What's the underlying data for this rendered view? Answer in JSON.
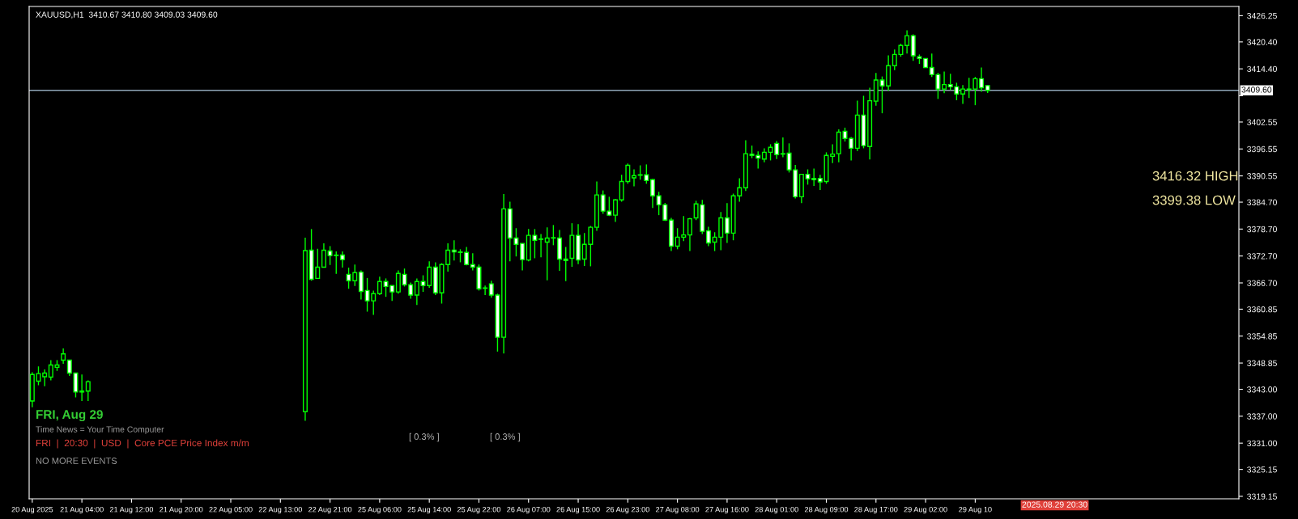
{
  "chart_data": {
    "type": "candlestick",
    "title": "XAUUSD,H1  3410.67 3410.80 3409.03 3409.60",
    "color": "#00ff00",
    "categories": [
      "20 Aug 2025",
      null,
      null,
      null,
      null,
      null,
      null,
      null,
      "21 Aug 04:00",
      null,
      null,
      null,
      null,
      null,
      null,
      null,
      "21 Aug 12:00",
      null,
      null,
      null,
      null,
      null,
      null,
      null,
      "21 Aug 20:00",
      null,
      null,
      null,
      null,
      null,
      null,
      null,
      "22 Aug 05:00",
      null,
      null,
      null,
      null,
      null,
      null,
      null,
      "22 Aug 13:00",
      null,
      null,
      null,
      null,
      null,
      null,
      null,
      "22 Aug 21:00",
      null,
      null,
      null,
      null,
      null,
      null,
      null,
      "25 Aug 06:00",
      null,
      null,
      null,
      null,
      null,
      null,
      null,
      "25 Aug 14:00",
      null,
      null,
      null,
      null,
      null,
      null,
      null,
      "25 Aug 22:00",
      null,
      null,
      null,
      null,
      null,
      null,
      null,
      "26 Aug 07:00",
      null,
      null,
      null,
      null,
      null,
      null,
      null,
      "26 Aug 15:00",
      null,
      null,
      null,
      null,
      null,
      null,
      null,
      "26 Aug 23:00",
      null,
      null,
      null,
      null,
      null,
      null,
      null,
      "27 Aug 08:00",
      null,
      null,
      null,
      null,
      null,
      null,
      null,
      "27 Aug 16:00",
      null,
      null,
      null,
      null,
      null,
      null,
      null,
      "28 Aug 01:00",
      null,
      null,
      null,
      null,
      null,
      null,
      null,
      "28 Aug 09:00",
      null,
      null,
      null,
      null,
      null,
      null,
      null,
      "28 Aug 17:00",
      null,
      null,
      null,
      null,
      null,
      null,
      null,
      "29 Aug 02:00",
      null,
      null,
      null,
      null,
      null,
      null,
      null,
      "29 Aug 10",
      null,
      null,
      null,
      null,
      null,
      null,
      null,
      null,
      null,
      null,
      null,
      null,
      null,
      null,
      null,
      null,
      null,
      null,
      null,
      null,
      null,
      null,
      null,
      null,
      null,
      null,
      null,
      null,
      null,
      null,
      null,
      null,
      null,
      null,
      null,
      null,
      null,
      null,
      null,
      null,
      null,
      null
    ],
    "ohlc": [
      [
        3340.4,
        3346.8,
        3339.0,
        3346.3
      ],
      [
        3344.8,
        3348.1,
        3343.9,
        3346.5
      ],
      [
        3345.8,
        3347.4,
        3343.7,
        3346.6
      ],
      [
        3345.7,
        3349.5,
        3345.0,
        3348.4
      ],
      [
        3347.9,
        3349.5,
        3347.1,
        3348.4
      ],
      [
        3349.5,
        3352.1,
        3348.7,
        3350.9
      ],
      [
        3349.5,
        3349.6,
        3346.0,
        3346.6
      ],
      [
        3346.6,
        3346.6,
        3341.2,
        3342.4
      ],
      [
        3342.4,
        3346.3,
        3340.4,
        3342.6
      ],
      [
        3342.6,
        3345.0,
        3340.4,
        3344.7
      ],
      null,
      null,
      null,
      null,
      null,
      null,
      null,
      null,
      null,
      null,
      null,
      null,
      null,
      null,
      null,
      null,
      null,
      null,
      null,
      null,
      null,
      null,
      null,
      null,
      null,
      null,
      null,
      null,
      null,
      null,
      null,
      null,
      null,
      null,
      [
        3338.0,
        3376.8,
        3336.0,
        3373.9
      ],
      [
        3374.0,
        3378.7,
        3367.2,
        3367.5
      ],
      [
        3367.7,
        3374.3,
        3367.7,
        3370.2
      ],
      [
        3370.2,
        3375.5,
        3370.2,
        3374.0
      ],
      [
        3373.8,
        3374.9,
        3370.7,
        3372.8
      ],
      [
        3372.8,
        3373.7,
        3368.7,
        3372.9
      ],
      [
        3372.9,
        3373.7,
        3370.1,
        3371.9
      ],
      [
        3368.6,
        3370.1,
        3365.4,
        3367.2
      ],
      [
        3367.2,
        3370.8,
        3366.0,
        3369.0
      ],
      [
        3369.1,
        3369.5,
        3363.0,
        3364.8
      ],
      [
        3365.0,
        3367.8,
        3360.3,
        3362.7
      ],
      [
        3362.7,
        3365.0,
        3359.6,
        3364.3
      ],
      [
        3364.3,
        3368.1,
        3364.0,
        3367.0
      ],
      [
        3367.0,
        3367.7,
        3363.6,
        3365.9
      ],
      [
        3366.1,
        3366.1,
        3362.7,
        3364.7
      ],
      [
        3364.7,
        3369.5,
        3364.3,
        3368.8
      ],
      [
        3368.6,
        3369.9,
        3365.9,
        3366.3
      ],
      [
        3366.3,
        3366.8,
        3363.2,
        3364.0
      ],
      [
        3364.0,
        3367.7,
        3361.8,
        3367.0
      ],
      [
        3367.0,
        3368.4,
        3364.7,
        3366.1
      ],
      [
        3366.1,
        3371.5,
        3365.6,
        3370.2
      ],
      [
        3370.2,
        3371.3,
        3364.0,
        3364.5
      ],
      [
        3364.5,
        3371.1,
        3362.1,
        3370.8
      ],
      [
        3370.8,
        3375.5,
        3369.2,
        3374.0
      ],
      [
        3374.0,
        3376.2,
        3371.7,
        3373.6
      ],
      [
        3373.5,
        3374.2,
        3371.3,
        3373.6
      ],
      [
        3373.5,
        3374.7,
        3370.6,
        3370.8
      ],
      [
        3370.8,
        3373.3,
        3369.5,
        3370.2
      ],
      [
        3370.2,
        3370.8,
        3365.0,
        3365.4
      ],
      [
        3365.5,
        3366.1,
        3364.0,
        3365.5
      ],
      [
        3366.5,
        3367.2,
        3363.4,
        3364.0
      ],
      [
        3364.0,
        3364.3,
        3351.4,
        3354.6
      ],
      [
        3354.6,
        3386.5,
        3351.0,
        3383.2
      ],
      [
        3383.2,
        3384.8,
        3371.5,
        3376.7
      ],
      [
        3376.7,
        3378.9,
        3372.6,
        3375.3
      ],
      [
        3375.5,
        3375.5,
        3369.5,
        3371.9
      ],
      [
        3371.8,
        3378.7,
        3371.5,
        3377.3
      ],
      [
        3377.3,
        3378.7,
        3372.2,
        3376.2
      ],
      [
        3376.4,
        3377.6,
        3372.4,
        3376.5
      ],
      [
        3375.8,
        3379.1,
        3367.3,
        3376.7
      ],
      [
        3376.7,
        3379.6,
        3375.1,
        3376.7
      ],
      [
        3376.7,
        3378.5,
        3369.4,
        3372.0
      ],
      [
        3372.0,
        3374.7,
        3367.1,
        3371.7
      ],
      [
        3372.2,
        3380.0,
        3370.3,
        3377.3
      ],
      [
        3377.3,
        3379.8,
        3370.9,
        3371.8
      ],
      [
        3372.0,
        3377.8,
        3370.5,
        3375.3
      ],
      [
        3375.3,
        3379.4,
        3370.4,
        3379.1
      ],
      [
        3379.1,
        3389.3,
        3378.3,
        3386.3
      ],
      [
        3386.3,
        3387.3,
        3382.1,
        3382.7
      ],
      [
        3382.7,
        3385.9,
        3381.6,
        3381.8
      ],
      [
        3381.8,
        3385.4,
        3380.3,
        3385.2
      ],
      [
        3385.2,
        3390.8,
        3384.8,
        3389.3
      ],
      [
        3389.3,
        3393.3,
        3388.8,
        3392.9
      ],
      [
        3390.1,
        3392.0,
        3388.2,
        3390.6
      ],
      [
        3390.7,
        3392.9,
        3389.7,
        3390.8
      ],
      [
        3390.8,
        3393.1,
        3388.8,
        3389.5
      ],
      [
        3389.7,
        3389.9,
        3383.4,
        3386.1
      ],
      [
        3386.1,
        3387.0,
        3381.8,
        3384.1
      ],
      [
        3384.1,
        3384.5,
        3380.5,
        3380.7
      ],
      [
        3380.7,
        3381.2,
        3373.8,
        3374.9
      ],
      [
        3374.9,
        3378.9,
        3374.2,
        3376.9
      ],
      [
        3376.9,
        3381.6,
        3376.0,
        3377.4
      ],
      [
        3377.4,
        3381.2,
        3373.8,
        3381.0
      ],
      [
        3381.2,
        3385.0,
        3380.7,
        3384.3
      ],
      [
        3384.1,
        3385.2,
        3377.6,
        3378.2
      ],
      [
        3378.3,
        3379.2,
        3374.9,
        3375.6
      ],
      [
        3375.8,
        3378.0,
        3373.8,
        3376.9
      ],
      [
        3376.9,
        3382.5,
        3374.0,
        3381.2
      ],
      [
        3381.2,
        3384.5,
        3375.6,
        3377.8
      ],
      [
        3377.8,
        3386.6,
        3376.2,
        3386.1
      ],
      [
        3386.1,
        3390.0,
        3384.8,
        3387.9
      ],
      [
        3387.9,
        3398.5,
        3387.2,
        3395.5
      ],
      [
        3395.4,
        3397.3,
        3394.5,
        3395.1
      ],
      [
        3395.1,
        3396.0,
        3392.2,
        3394.5
      ],
      [
        3394.3,
        3396.7,
        3393.6,
        3395.8
      ],
      [
        3395.8,
        3397.6,
        3394.0,
        3396.9
      ],
      [
        3397.8,
        3398.3,
        3394.3,
        3395.3
      ],
      [
        3395.5,
        3399.1,
        3394.7,
        3395.4
      ],
      [
        3395.6,
        3397.8,
        3391.3,
        3391.9
      ],
      [
        3391.9,
        3393.0,
        3385.5,
        3385.9
      ],
      [
        3385.9,
        3390.9,
        3384.5,
        3390.9
      ],
      [
        3390.9,
        3392.0,
        3388.6,
        3389.9
      ],
      [
        3390.0,
        3392.2,
        3388.3,
        3389.7
      ],
      [
        3390.0,
        3390.8,
        3387.4,
        3389.2
      ],
      [
        3389.3,
        3395.8,
        3388.8,
        3395.1
      ],
      [
        3394.9,
        3397.6,
        3393.4,
        3395.4
      ],
      [
        3395.5,
        3400.9,
        3393.6,
        3400.3
      ],
      [
        3400.5,
        3401.3,
        3398.2,
        3398.9
      ],
      [
        3398.9,
        3399.2,
        3394.0,
        3396.7
      ],
      [
        3396.7,
        3407.3,
        3396.1,
        3404.1
      ],
      [
        3404.1,
        3408.4,
        3396.7,
        3397.3
      ],
      [
        3397.1,
        3410.2,
        3394.2,
        3407.3
      ],
      [
        3407.2,
        3413.5,
        3406.2,
        3411.9
      ],
      [
        3411.9,
        3412.7,
        3404.5,
        3410.6
      ],
      [
        3410.6,
        3417.4,
        3409.5,
        3415.1
      ],
      [
        3415.1,
        3418.7,
        3414.1,
        3417.6
      ],
      [
        3417.6,
        3420.0,
        3417.1,
        3419.6
      ],
      [
        3419.6,
        3423.0,
        3417.8,
        3421.8
      ],
      [
        3421.8,
        3422.1,
        3416.2,
        3417.3
      ],
      [
        3417.1,
        3417.6,
        3415.5,
        3416.7
      ],
      [
        3416.7,
        3416.7,
        3414.6,
        3414.7
      ],
      [
        3414.7,
        3417.8,
        3412.6,
        3413.1
      ],
      [
        3413.1,
        3413.5,
        3407.7,
        3409.9
      ],
      [
        3409.9,
        3413.8,
        3409.0,
        3410.9
      ],
      [
        3410.9,
        3413.3,
        3409.7,
        3410.4
      ],
      [
        3410.4,
        3411.3,
        3407.4,
        3408.8
      ],
      [
        3408.8,
        3410.8,
        3406.6,
        3409.9
      ],
      [
        3409.8,
        3412.4,
        3407.9,
        3409.9
      ],
      [
        3409.9,
        3412.6,
        3406.3,
        3412.2
      ],
      [
        3412.2,
        3414.7,
        3409.3,
        3410.2
      ],
      [
        3410.67,
        3410.8,
        3409.03,
        3409.6
      ],
      null,
      null,
      null,
      null,
      null,
      null,
      null,
      null,
      null,
      null,
      null,
      null,
      null,
      null,
      null,
      null,
      null,
      null,
      null,
      null,
      null,
      null,
      null,
      null,
      null,
      null,
      null,
      null,
      null,
      null,
      null,
      null,
      null,
      null,
      null,
      null,
      null,
      null,
      null,
      null
    ],
    "ylim": [
      3318.6,
      3428.3
    ],
    "yticks": [
      {
        "value": 3426.25,
        "label": "3426.25"
      },
      {
        "value": 3420.4,
        "label": "3420.40"
      },
      {
        "value": 3414.4,
        "label": "3414.40"
      },
      {
        "value": 3408.4,
        "label": null
      },
      {
        "value": 3402.55,
        "label": "3402.55"
      },
      {
        "value": 3396.55,
        "label": "3396.55"
      },
      {
        "value": 3390.55,
        "label": "3390.55"
      },
      {
        "value": 3384.7,
        "label": "3384.70"
      },
      {
        "value": 3378.7,
        "label": "3378.70"
      },
      {
        "value": 3372.7,
        "label": "3372.70"
      },
      {
        "value": 3366.7,
        "label": "3366.70"
      },
      {
        "value": 3360.85,
        "label": "3360.85"
      },
      {
        "value": 3354.85,
        "label": "3354.85"
      },
      {
        "value": 3348.85,
        "label": "3348.85"
      },
      {
        "value": 3343.0,
        "label": "3343.00"
      },
      {
        "value": 3337.0,
        "label": "3337.00"
      },
      {
        "value": 3331.0,
        "label": "3331.00"
      },
      {
        "value": 3325.15,
        "label": "3325.15"
      },
      {
        "value": 3319.15,
        "label": "3319.15"
      }
    ],
    "ref_lines": [
      {
        "axis": "y",
        "value": 3409.6,
        "label": "3409.60",
        "color": "#8fa6b8"
      }
    ],
    "annotations": [
      "FRI, Aug 29",
      "Time News = Your Time Computer",
      "FRI  |  20:30  |  USD  |  Core PCE Price Index m/m",
      "NO MORE EVENTS",
      "[ 0.3% ]",
      "[ 0.3% ]",
      "3416.32 HIGH",
      "3399.38 LOW",
      "2025.08.29 20:30"
    ],
    "grid": false,
    "legend": false
  }
}
